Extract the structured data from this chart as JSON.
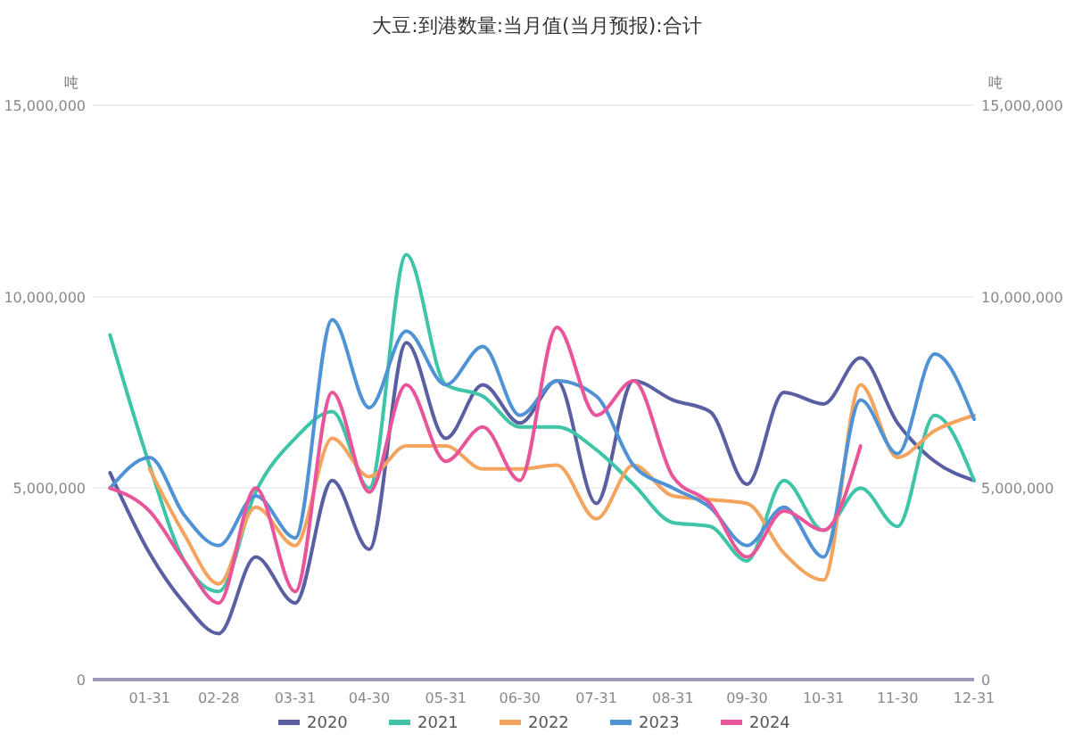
{
  "chart_data": {
    "type": "line",
    "title": "大豆:到港数量:当月值(当月预报):合计",
    "ylabel": "吨",
    "y2label": "吨",
    "x": [
      "--01-15",
      "--01-31",
      "--02-14",
      "--02-28",
      "--03-15",
      "--03-31",
      "--04-15",
      "--04-30",
      "--05-15",
      "--05-31",
      "--06-15",
      "--06-30",
      "--07-15",
      "--07-31",
      "--08-15",
      "--08-31",
      "--09-15",
      "--09-30",
      "--10-15",
      "--10-31",
      "--11-15",
      "--11-30",
      "--12-15",
      "--12-31"
    ],
    "xlim": [
      "--01-08",
      "--12-31"
    ],
    "xticks": [
      {
        "value": "--01-31",
        "label": "01-31"
      },
      {
        "value": "--02-28",
        "label": "02-28"
      },
      {
        "value": "--03-31",
        "label": "03-31"
      },
      {
        "value": "--04-30",
        "label": "04-30"
      },
      {
        "value": "--05-31",
        "label": "05-31"
      },
      {
        "value": "--06-30",
        "label": "06-30"
      },
      {
        "value": "--07-31",
        "label": "07-31"
      },
      {
        "value": "--08-31",
        "label": "08-31"
      },
      {
        "value": "--09-30",
        "label": "09-30"
      },
      {
        "value": "--10-31",
        "label": "10-31"
      },
      {
        "value": "--11-30",
        "label": "11-30"
      },
      {
        "value": "--12-31",
        "label": "12-31"
      }
    ],
    "ylim": [
      0,
      15000000
    ],
    "yticks": [
      0,
      {
        "value": 5000000,
        "label": "5,000,000"
      },
      {
        "value": 10000000,
        "label": "10,000,000"
      },
      {
        "value": 15000000,
        "label": "15,000,000"
      }
    ],
    "y2lim": [
      0,
      15000000
    ],
    "y2ticks": [
      0,
      {
        "value": 5000000,
        "label": "5,000,000"
      },
      {
        "value": 10000000,
        "label": "10,000,000"
      },
      {
        "value": 15000000,
        "label": "15,000,000"
      }
    ],
    "grid": "y",
    "legend": "bottom",
    "marker": "none",
    "line_style": "solid",
    "series": [
      {
        "name": "2020",
        "color": "#5a5ea3",
        "values": [
          5400000,
          3300000,
          2000000,
          1200000,
          3200000,
          2000000,
          5200000,
          3400000,
          8800000,
          6300000,
          7700000,
          6700000,
          7800000,
          4600000,
          7800000,
          7300000,
          7000000,
          5100000,
          7500000,
          7200000,
          8400000,
          6700000,
          5700000,
          5200000
        ]
      },
      {
        "name": "2021",
        "color": "#3ec4a6",
        "values": [
          9000000,
          5600000,
          3100000,
          2300000,
          4900000,
          6300000,
          7000000,
          5000000,
          11100000,
          7700000,
          7400000,
          6600000,
          6600000,
          6000000,
          5100000,
          4100000,
          4000000,
          3100000,
          5200000,
          3900000,
          5000000,
          4000000,
          6900000,
          5200000
        ]
      },
      {
        "name": "2022",
        "color": "#f4a45c",
        "values": [
          null,
          5500000,
          3800000,
          2500000,
          4500000,
          3500000,
          6300000,
          5300000,
          6100000,
          6100000,
          5500000,
          5500000,
          5600000,
          4200000,
          5600000,
          4800000,
          4700000,
          4600000,
          3300000,
          2600000,
          7700000,
          5800000,
          6500000,
          6900000
        ]
      },
      {
        "name": "2023",
        "color": "#4f93d6",
        "values": [
          5000000,
          5800000,
          4300000,
          3500000,
          4800000,
          3700000,
          9400000,
          7100000,
          9100000,
          7700000,
          8700000,
          6900000,
          7800000,
          7400000,
          5600000,
          5000000,
          4500000,
          3500000,
          4500000,
          3200000,
          7300000,
          5900000,
          8500000,
          6800000
        ]
      },
      {
        "name": "2024",
        "color": "#e8559b",
        "values": [
          5000000,
          4400000,
          3100000,
          2000000,
          5000000,
          2300000,
          7500000,
          4900000,
          7700000,
          5700000,
          6600000,
          5200000,
          9200000,
          6900000,
          7800000,
          5300000,
          4600000,
          3200000,
          4400000,
          3900000,
          6100000,
          null,
          null,
          null
        ]
      }
    ]
  }
}
